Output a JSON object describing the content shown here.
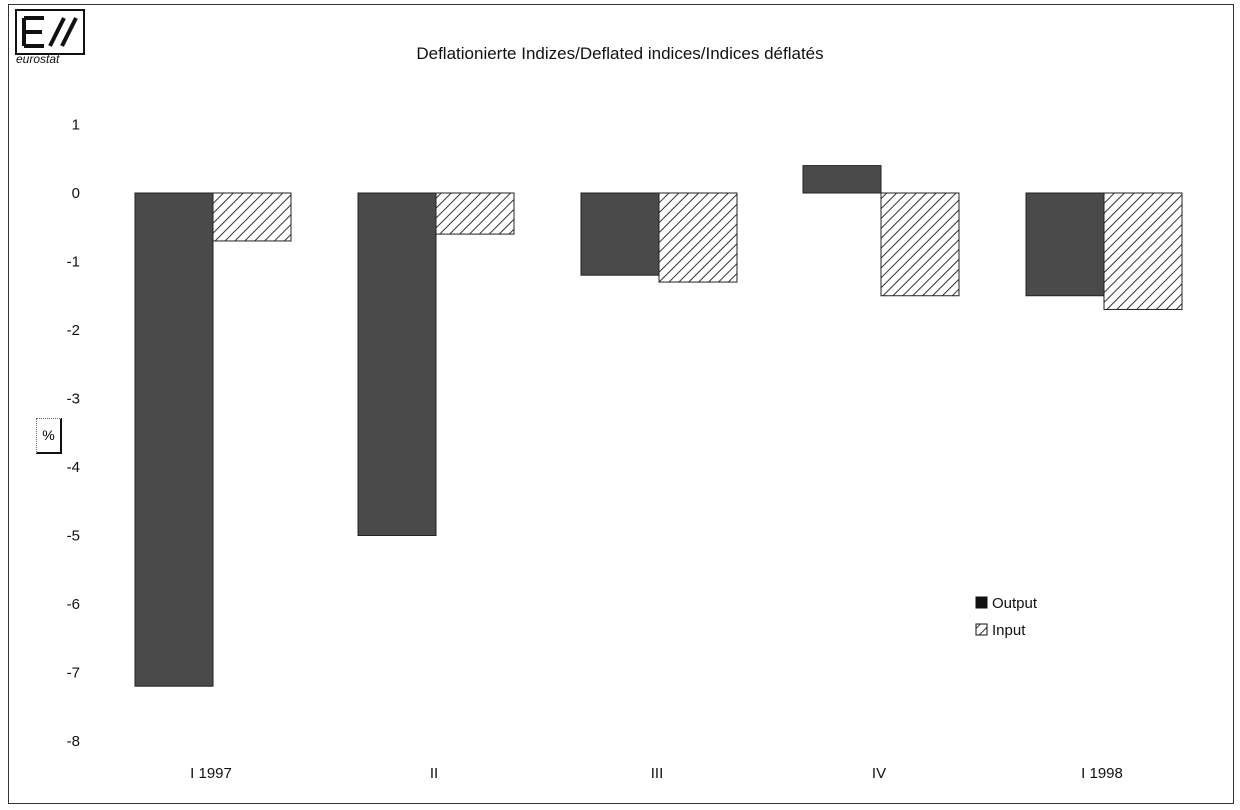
{
  "logo": {
    "text": "eurostat",
    "icon": "eurostat-logo"
  },
  "chart_data": {
    "type": "bar",
    "title": "Deflationierte Indizes/Deflated indices/Indices déflatés",
    "ylabel": "%",
    "xlabel": "",
    "categories": [
      "I    1997",
      "II",
      "III",
      "IV",
      "I    1998"
    ],
    "series": [
      {
        "name": "Output",
        "values": [
          -7.2,
          -5.0,
          -1.2,
          0.4,
          -1.5
        ],
        "color": "#4a4a4a",
        "pattern": "solid"
      },
      {
        "name": "Input",
        "values": [
          -0.7,
          -0.6,
          -1.3,
          -1.5,
          -1.7
        ],
        "color": "#555555",
        "pattern": "hatched"
      }
    ],
    "ylim": [
      -8,
      1
    ],
    "yticks": [
      "1",
      "0",
      "-1",
      "-2",
      "-3",
      "-4",
      "-5",
      "-6",
      "-7",
      "-8"
    ],
    "grid": false,
    "legend": "bottom-right"
  }
}
